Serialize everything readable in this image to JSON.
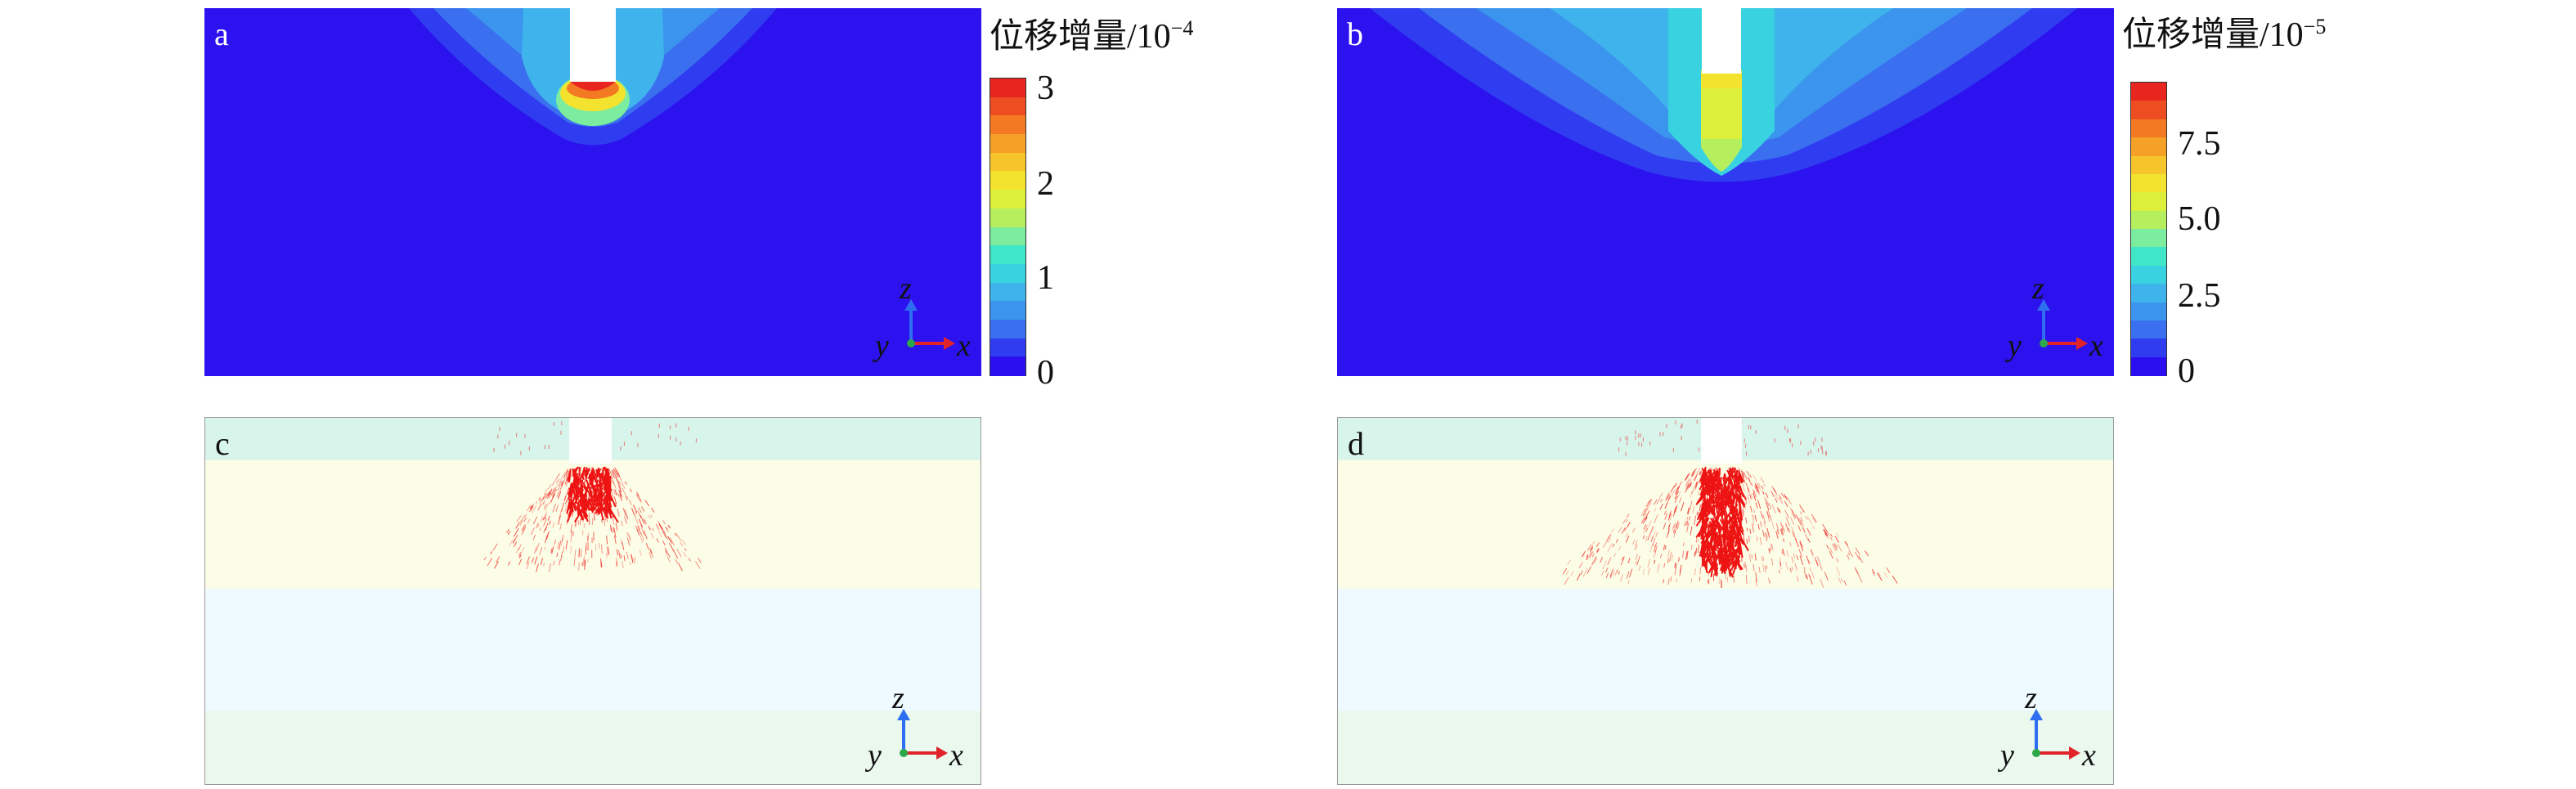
{
  "panels": [
    {
      "id": "a",
      "label": "a"
    },
    {
      "id": "b",
      "label": "b"
    },
    {
      "id": "c",
      "label": "c"
    },
    {
      "id": "d",
      "label": "d"
    }
  ],
  "axes": {
    "z": "z",
    "y": "y",
    "x": "x"
  },
  "colorbar_a": {
    "title": "位移增量/10",
    "exponent": "−4",
    "ticks": [
      "3",
      "2",
      "1",
      "0"
    ]
  },
  "colorbar_b": {
    "title": "位移增量/10",
    "exponent": "−5",
    "ticks": [
      "7.5",
      "5.0",
      "2.5",
      "0"
    ]
  },
  "colors": {
    "contour_scale": [
      "#2b0ef0",
      "#2f3cf0",
      "#3a6ff0",
      "#3b95ef",
      "#3fb3ec",
      "#39d2e0",
      "#3fe6c8",
      "#7cec9f",
      "#b5ef5d",
      "#dcef3b",
      "#f3e32f",
      "#f6c52b",
      "#f5a026",
      "#f37a22",
      "#ee4d22",
      "#e8261f"
    ],
    "background_field": "#2c12ee",
    "vector_red": "#ee1414",
    "layer_top": "#d8f5ec",
    "layer_2": "#fcfde6",
    "layer_3": "#eefaff",
    "layer_4": "#eaf8ee"
  }
}
